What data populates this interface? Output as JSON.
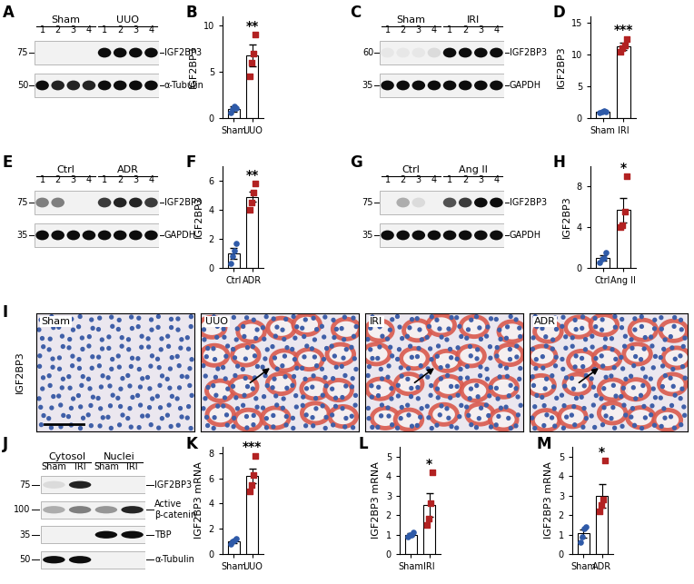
{
  "chart_data": [
    {
      "type": "bar",
      "panel_label": "B",
      "y_label": "IGF2BP3",
      "categories": [
        "Sham",
        "UUO"
      ],
      "values": [
        1.0,
        6.8
      ],
      "errors": [
        0.3,
        1.2
      ],
      "points": [
        [
          0.6,
          1.0,
          1.3,
          1.1
        ],
        [
          4.5,
          6.0,
          7.0,
          9.0
        ]
      ],
      "colors": [
        "#2e5aa8",
        "#b22222"
      ],
      "ylim": [
        0,
        11
      ],
      "yticks": [
        0,
        5,
        10
      ],
      "significance": "**"
    },
    {
      "type": "bar",
      "panel_label": "D",
      "y_label": "IGF2BP3",
      "categories": [
        "Sham",
        "IRI"
      ],
      "values": [
        1.0,
        11.3
      ],
      "errors": [
        0.1,
        0.6
      ],
      "points": [
        [
          0.9,
          1.0,
          1.1,
          1.0
        ],
        [
          10.5,
          11.0,
          11.5,
          12.5
        ]
      ],
      "colors": [
        "#2e5aa8",
        "#b22222"
      ],
      "ylim": [
        0,
        16
      ],
      "yticks": [
        0,
        5,
        10,
        15
      ],
      "significance": "***"
    },
    {
      "type": "bar",
      "panel_label": "F",
      "y_label": "IGF2BP3",
      "categories": [
        "Ctrl",
        "ADR"
      ],
      "values": [
        1.0,
        4.9
      ],
      "errors": [
        0.35,
        0.35
      ],
      "points": [
        [
          0.3,
          0.8,
          1.2,
          1.7
        ],
        [
          4.0,
          4.5,
          5.2,
          5.8
        ]
      ],
      "colors": [
        "#2e5aa8",
        "#b22222"
      ],
      "ylim": [
        0,
        7
      ],
      "yticks": [
        0,
        2,
        4,
        6
      ],
      "significance": "**"
    },
    {
      "type": "bar",
      "panel_label": "H",
      "y_label": "IGF2BP3",
      "categories": [
        "Ctrl",
        "Ang II"
      ],
      "values": [
        1.0,
        5.7
      ],
      "errors": [
        0.25,
        1.2
      ],
      "points": [
        [
          0.5,
          0.9,
          1.0,
          1.5
        ],
        [
          4.0,
          4.2,
          5.5,
          9.0
        ]
      ],
      "colors": [
        "#2e5aa8",
        "#b22222"
      ],
      "ylim": [
        0,
        10
      ],
      "yticks": [
        0,
        4,
        8
      ],
      "significance": "*"
    },
    {
      "type": "bar",
      "panel_label": "K",
      "y_label": "IGF2BP3 mRNA",
      "categories": [
        "Sham",
        "UUO"
      ],
      "values": [
        1.0,
        6.2
      ],
      "errors": [
        0.1,
        0.6
      ],
      "points": [
        [
          0.8,
          1.0,
          1.1,
          1.2
        ],
        [
          5.0,
          5.5,
          6.3,
          7.8
        ]
      ],
      "colors": [
        "#2e5aa8",
        "#b22222"
      ],
      "ylim": [
        0,
        8.5
      ],
      "yticks": [
        0,
        2,
        4,
        6,
        8
      ],
      "significance": "***"
    },
    {
      "type": "bar",
      "panel_label": "L",
      "y_label": "IGF2BP3 mRNA",
      "categories": [
        "Sham",
        "IRI"
      ],
      "values": [
        1.0,
        2.5
      ],
      "errors": [
        0.05,
        0.6
      ],
      "points": [
        [
          0.9,
          1.0,
          1.0,
          1.1
        ],
        [
          1.5,
          1.8,
          2.6,
          4.2
        ]
      ],
      "colors": [
        "#2e5aa8",
        "#b22222"
      ],
      "ylim": [
        0,
        5.5
      ],
      "yticks": [
        0,
        1,
        2,
        3,
        4,
        5
      ],
      "significance": "*"
    },
    {
      "type": "bar",
      "panel_label": "M",
      "y_label": "IGF2BP3 mRNA",
      "categories": [
        "Sham",
        "ADR"
      ],
      "values": [
        1.05,
        3.0
      ],
      "errors": [
        0.2,
        0.6
      ],
      "points": [
        [
          0.6,
          0.9,
          1.3,
          1.4
        ],
        [
          2.2,
          2.5,
          2.8,
          4.8
        ]
      ],
      "colors": [
        "#2e5aa8",
        "#b22222"
      ],
      "ylim": [
        0,
        5.5
      ],
      "yticks": [
        0,
        1,
        2,
        3,
        4,
        5
      ],
      "significance": "*"
    }
  ],
  "blots": [
    {
      "panel_label": "A",
      "groups": [
        {
          "name": "Sham",
          "lanes": [
            "1",
            "2",
            "3",
            "4"
          ]
        },
        {
          "name": "UUO",
          "lanes": [
            "1",
            "2",
            "3",
            "4"
          ]
        }
      ],
      "rows": [
        {
          "label": "IGF2BP3",
          "mw": 75,
          "intensity": [
            0,
            0,
            0,
            0,
            1,
            1,
            1,
            1
          ]
        },
        {
          "label": "α-Tubulin",
          "mw": 50,
          "intensity": [
            1,
            0.9,
            0.9,
            0.9,
            1,
            1,
            1,
            1
          ]
        }
      ]
    },
    {
      "panel_label": "C",
      "groups": [
        {
          "name": "Sham",
          "lanes": [
            "1",
            "2",
            "3",
            "4"
          ]
        },
        {
          "name": "IRI",
          "lanes": [
            "1",
            "2",
            "3",
            "4"
          ]
        }
      ],
      "rows": [
        {
          "label": "IGF2BP3",
          "mw": 60,
          "intensity": [
            0.05,
            0.05,
            0.05,
            0.1,
            1,
            1,
            1,
            1
          ]
        },
        {
          "label": "GAPDH",
          "mw": 35,
          "intensity": [
            1,
            1,
            1,
            1,
            1,
            1,
            1,
            1
          ]
        }
      ]
    },
    {
      "panel_label": "E",
      "groups": [
        {
          "name": "Ctrl",
          "lanes": [
            "1",
            "2",
            "3",
            "4"
          ]
        },
        {
          "name": "ADR",
          "lanes": [
            "1",
            "2",
            "3",
            "4"
          ]
        }
      ],
      "rows": [
        {
          "label": "IGF2BP3",
          "mw": 75,
          "intensity": [
            0.5,
            0.5,
            0,
            0,
            0.8,
            0.9,
            0.9,
            0.8
          ]
        },
        {
          "label": "GAPDH",
          "mw": 35,
          "intensity": [
            1,
            1,
            1,
            1,
            1,
            1,
            1,
            1
          ]
        }
      ]
    },
    {
      "panel_label": "G",
      "groups": [
        {
          "name": "Ctrl",
          "lanes": [
            "1",
            "2",
            "3",
            "4"
          ]
        },
        {
          "name": "Ang II",
          "lanes": [
            "1",
            "2",
            "3",
            "4"
          ]
        }
      ],
      "rows": [
        {
          "label": "IGF2BP3",
          "mw": 75,
          "intensity": [
            0,
            0.3,
            0.1,
            0,
            0.7,
            0.8,
            1,
            1
          ]
        },
        {
          "label": "GAPDH",
          "mw": 35,
          "intensity": [
            1,
            1,
            1,
            1,
            1,
            1,
            1,
            1
          ]
        }
      ]
    },
    {
      "panel_label": "J",
      "groups": [
        {
          "name": "Cytosol",
          "lanes": [
            "Sham",
            "IRI"
          ]
        },
        {
          "name": "Nuclei",
          "lanes": [
            "Sham",
            "IRI"
          ]
        }
      ],
      "rows": [
        {
          "label": "IGF2BP3",
          "mw": 75,
          "intensity": [
            0.1,
            0.9,
            0,
            0
          ]
        },
        {
          "label": "Active β-catenin",
          "mw": 100,
          "intensity": [
            0.3,
            0.5,
            0.4,
            0.9
          ]
        },
        {
          "label": "TBP",
          "mw": 35,
          "intensity": [
            0,
            0,
            1,
            1
          ]
        },
        {
          "label": "α-Tubulin",
          "mw": 50,
          "intensity": [
            1,
            1,
            0,
            0
          ]
        }
      ]
    }
  ],
  "histology": {
    "panel_label": "I",
    "label": "IGF2BP3",
    "images": [
      {
        "title": "Sham",
        "stain": 0
      },
      {
        "title": "UUO",
        "stain": 1
      },
      {
        "title": "IRI",
        "stain": 1
      },
      {
        "title": "ADR",
        "stain": 1
      }
    ]
  }
}
